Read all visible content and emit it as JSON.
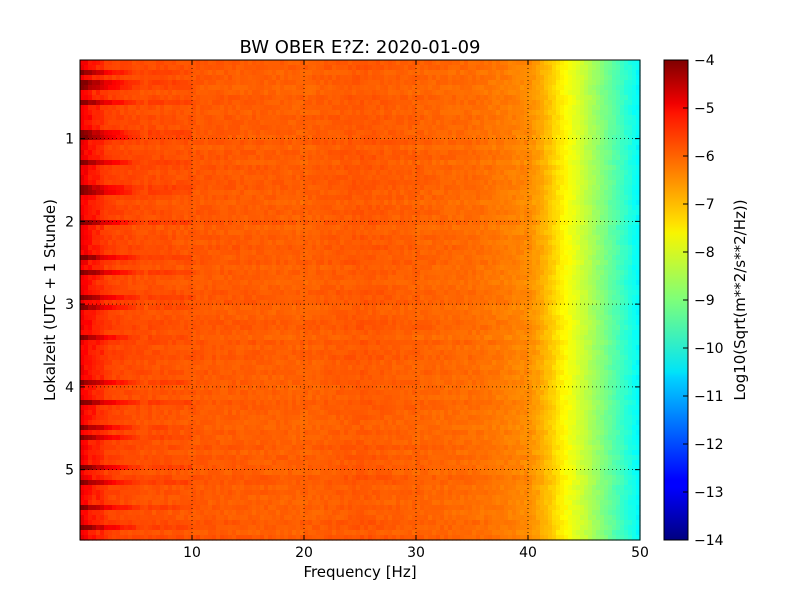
{
  "chart_data": {
    "type": "heatmap",
    "title": "BW OBER E?Z: 2020-01-09",
    "xlabel": "Frequency [Hz]",
    "ylabel": "Lokalzeit (UTC + 1 Stunde)",
    "xlim": [
      0,
      50
    ],
    "ylim": [
      5.85,
      0.05
    ],
    "x_ticks": [
      10,
      20,
      30,
      40,
      50
    ],
    "x_tick_labels": [
      "10",
      "20",
      "30",
      "40",
      "50"
    ],
    "y_ticks": [
      1,
      2,
      3,
      4,
      5
    ],
    "y_tick_labels": [
      "1",
      "2",
      "3",
      "4",
      "5"
    ],
    "grid": true,
    "colormap": "jet",
    "colorbar": {
      "label": "Log10(Sqrt(m**2/s**2/Hz))",
      "range": [
        -14,
        -4
      ],
      "ticks": [
        -4,
        -5,
        -6,
        -7,
        -8,
        -9,
        -10,
        -11,
        -12,
        -13,
        -14
      ],
      "tick_labels": [
        "−4",
        "−5",
        "−6",
        "−7",
        "−8",
        "−9",
        "−10",
        "−11",
        "−12",
        "−13",
        "−14"
      ]
    },
    "spectrum_profile": {
      "frequency_hz": [
        0,
        1,
        2,
        3,
        5,
        8,
        10,
        15,
        20,
        25,
        30,
        35,
        38,
        40,
        41,
        42,
        43,
        44,
        45,
        46,
        47,
        48,
        49,
        50
      ],
      "log10_amplitude": [
        -5.2,
        -5.6,
        -5.8,
        -5.9,
        -6.0,
        -6.05,
        -6.1,
        -6.15,
        -6.2,
        -6.1,
        -6.2,
        -6.3,
        -6.45,
        -6.6,
        -6.85,
        -7.2,
        -7.6,
        -7.95,
        -8.3,
        -8.7,
        -9.1,
        -9.5,
        -9.9,
        -10.3
      ]
    },
    "strong_rows_hours": [
      0.2,
      0.35,
      0.55,
      0.95,
      1.0,
      1.3,
      1.62,
      1.65,
      2.0,
      2.45,
      2.6,
      2.9,
      3.05,
      3.4,
      3.95,
      4.2,
      4.5,
      4.6,
      4.95,
      5.15,
      5.45,
      5.7
    ]
  }
}
